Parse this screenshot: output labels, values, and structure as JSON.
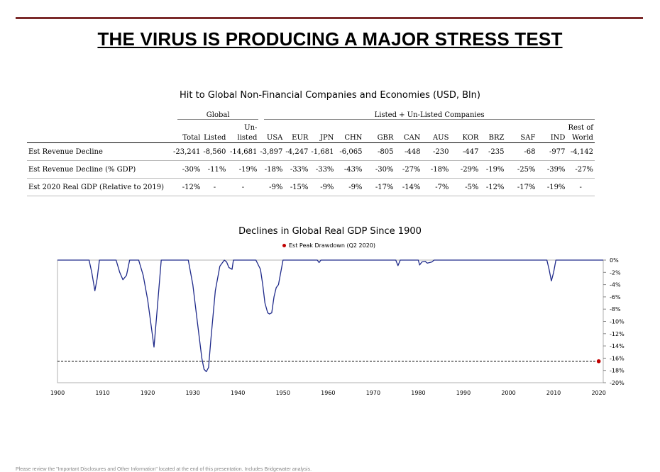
{
  "title": "THE VIRUS IS PRODUCING A MAJOR STRESS TEST",
  "table": {
    "title": "Hit to Global Non-Financial Companies and Economies (USD, Bln)",
    "group_global": "Global",
    "group_listed": "Listed + Un-Listed Companies",
    "headers_top": [
      "",
      "",
      "",
      "Un-",
      "",
      "",
      "",
      "",
      "",
      "",
      "",
      "",
      "",
      "",
      "",
      "Rest of"
    ],
    "headers": [
      "",
      "Total",
      "Listed",
      "listed",
      "USA",
      "EUR",
      "JPN",
      "CHN",
      "GBR",
      "CAN",
      "AUS",
      "KOR",
      "BRZ",
      "SAF",
      "IND",
      "World"
    ],
    "rows": [
      {
        "label": "Est Revenue Decline",
        "values": [
          "-23,241",
          "-8,560",
          "-14,681",
          "-3,897",
          "-4,247",
          "-1,681",
          "-6,065",
          "-805",
          "-448",
          "-230",
          "-447",
          "-235",
          "-68",
          "-977",
          "-4,142"
        ]
      },
      {
        "label": "Est Revenue Decline (% GDP)",
        "values": [
          "-30%",
          "-11%",
          "-19%",
          "-18%",
          "-33%",
          "-33%",
          "-43%",
          "-30%",
          "-27%",
          "-18%",
          "-29%",
          "-19%",
          "-25%",
          "-39%",
          "-27%"
        ]
      },
      {
        "label": "Est 2020 Real GDP (Relative to 2019)",
        "values": [
          "-12%",
          "-",
          "-",
          "-9%",
          "-15%",
          "-9%",
          "-9%",
          "-17%",
          "-14%",
          "-7%",
          "-5%",
          "-12%",
          "-17%",
          "-19%",
          "-"
        ]
      }
    ]
  },
  "chart": {
    "title": "Declines in Global Real GDP Since 1900",
    "legend_label": "Est Peak Drawdown (Q2 2020)"
  },
  "chart_data": {
    "type": "area",
    "title": "Declines in Global Real GDP Since 1900",
    "xlabel": "",
    "ylabel": "",
    "xlim": [
      1900,
      2021
    ],
    "ylim": [
      -20,
      0
    ],
    "x_ticks": [
      "1900",
      "1910",
      "1920",
      "1930",
      "1940",
      "1950",
      "1960",
      "1970",
      "1980",
      "1990",
      "2000",
      "2010",
      "2020"
    ],
    "y_ticks": [
      "0%",
      "-2%",
      "-4%",
      "-6%",
      "-8%",
      "-10%",
      "-12%",
      "-14%",
      "-16%",
      "-18%",
      "-20%"
    ],
    "y_axis_position": "right",
    "grid": false,
    "legend_position": "top-center",
    "series": [
      {
        "color": "#1f2a8a",
        "x": [
          1900,
          1907,
          1907.6,
          1908.3,
          1908.8,
          1909.3,
          1913,
          1913.8,
          1914.5,
          1915.3,
          1916,
          1918,
          1919,
          1920,
          1921,
          1921.4,
          1922,
          1923,
          1929,
          1930,
          1931,
          1932,
          1932.5,
          1933,
          1933.5,
          1934,
          1935,
          1936,
          1937,
          1937.5,
          1938,
          1938.7,
          1939,
          1944,
          1945,
          1945.5,
          1946,
          1946.6,
          1947,
          1947.5,
          1948,
          1948.5,
          1949,
          1949.5,
          1950,
          1957.6,
          1958,
          1958.4,
          1975,
          1975.5,
          1976,
          1980,
          1980.3,
          1980.8,
          1981.5,
          1982,
          1982.5,
          1983,
          1983.5,
          1984,
          2008.5,
          2009,
          2009.5,
          2010,
          2010.5,
          2021
        ],
        "y": [
          0,
          0,
          -2,
          -5,
          -3,
          0,
          0,
          -2,
          -3.2,
          -2.5,
          0,
          0,
          -2.5,
          -6.5,
          -12,
          -14.2,
          -9,
          0,
          0,
          -4,
          -10,
          -16,
          -17.8,
          -18.2,
          -17.5,
          -13,
          -5,
          -1,
          0,
          -0.3,
          -1.2,
          -1.5,
          0,
          0,
          -1.5,
          -4,
          -7,
          -8.6,
          -8.8,
          -8.6,
          -6,
          -4.5,
          -4,
          -2,
          0,
          0,
          -0.4,
          0,
          0,
          -0.9,
          0,
          0,
          -0.8,
          -0.3,
          -0.2,
          -0.5,
          -0.4,
          -0.3,
          0,
          0,
          0,
          -1.5,
          -3.4,
          -2,
          0,
          0
        ]
      }
    ],
    "reference_line": {
      "y": -16.5,
      "style": "dashed",
      "from_x": 1900,
      "to_x": 2020
    },
    "points": [
      {
        "name": "Est Peak Drawdown (Q2 2020)",
        "x": 2020,
        "y": -16.5,
        "color": "#c00000"
      }
    ]
  },
  "footer": "Please review the \"Important Disclosures and Other Information\" located at the end of this presentation. Includes Bridgewater analysis."
}
